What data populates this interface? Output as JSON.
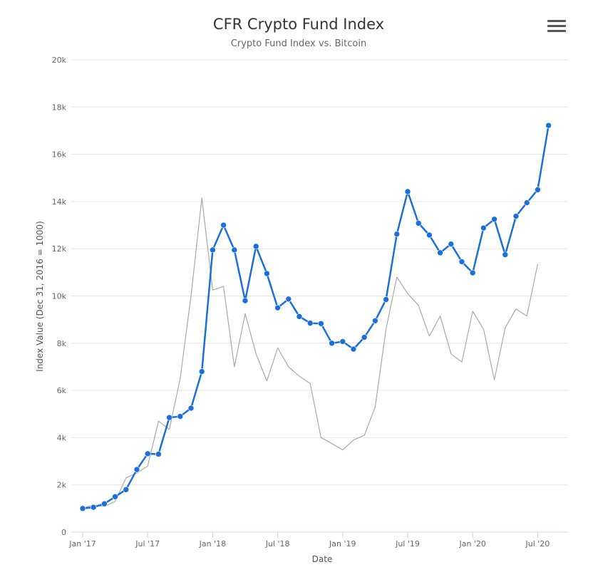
{
  "chart_data": {
    "type": "line",
    "title": "CFR Crypto Fund Index",
    "subtitle": "Crypto Fund Index vs. Bitcoin",
    "xlabel": "Date",
    "ylabel": "Index Value (Dec 31, 2016 = 1000)",
    "ylim": [
      0,
      20000
    ],
    "yticks": [
      0,
      2000,
      4000,
      6000,
      8000,
      10000,
      12000,
      14000,
      16000,
      18000,
      20000
    ],
    "ytick_labels": [
      "0",
      "2k",
      "4k",
      "6k",
      "8k",
      "10k",
      "12k",
      "14k",
      "16k",
      "18k",
      "20k"
    ],
    "x_domain": [
      "2017-01",
      "2020-08"
    ],
    "x_ticks": [
      {
        "date": "2017-01-01",
        "label": "Jan '17"
      },
      {
        "date": "2017-07-01",
        "label": "Jul '17"
      },
      {
        "date": "2018-01-01",
        "label": "Jan '18"
      },
      {
        "date": "2018-07-01",
        "label": "Jul '18"
      },
      {
        "date": "2019-01-01",
        "label": "Jan '19"
      },
      {
        "date": "2019-07-01",
        "label": "Jul '19"
      },
      {
        "date": "2020-01-01",
        "label": "Jan '20"
      },
      {
        "date": "2020-07-01",
        "label": "Jul '20"
      }
    ],
    "grid": true,
    "legend": "none",
    "series": [
      {
        "color": "#1a6fd8",
        "markers": true,
        "points": [
          [
            "2017-01-01",
            1000
          ],
          [
            "2017-02-01",
            1050
          ],
          [
            "2017-03-01",
            1200
          ],
          [
            "2017-04-01",
            1500
          ],
          [
            "2017-05-01",
            1800
          ],
          [
            "2017-06-01",
            2650
          ],
          [
            "2017-07-01",
            3320
          ],
          [
            "2017-08-01",
            3300
          ],
          [
            "2017-09-01",
            4850
          ],
          [
            "2017-10-01",
            4900
          ],
          [
            "2017-11-01",
            5250
          ],
          [
            "2017-12-01",
            6800
          ],
          [
            "2018-01-01",
            11950
          ],
          [
            "2018-02-01",
            13000
          ],
          [
            "2018-03-01",
            11950
          ],
          [
            "2018-04-01",
            9800
          ],
          [
            "2018-05-01",
            12100
          ],
          [
            "2018-06-01",
            10950
          ],
          [
            "2018-07-01",
            9500
          ],
          [
            "2018-08-01",
            9870
          ],
          [
            "2018-09-01",
            9130
          ],
          [
            "2018-10-01",
            8850
          ],
          [
            "2018-11-01",
            8830
          ],
          [
            "2018-12-01",
            8000
          ],
          [
            "2019-01-01",
            8070
          ],
          [
            "2019-02-01",
            7750
          ],
          [
            "2019-03-01",
            8250
          ],
          [
            "2019-04-01",
            8950
          ],
          [
            "2019-05-01",
            9850
          ],
          [
            "2019-06-01",
            12620
          ],
          [
            "2019-07-01",
            14420
          ],
          [
            "2019-08-01",
            13080
          ],
          [
            "2019-09-01",
            12580
          ],
          [
            "2019-10-01",
            11830
          ],
          [
            "2019-11-01",
            12200
          ],
          [
            "2019-12-01",
            11450
          ],
          [
            "2020-01-01",
            10980
          ],
          [
            "2020-02-01",
            12880
          ],
          [
            "2020-03-01",
            13250
          ],
          [
            "2020-04-01",
            11750
          ],
          [
            "2020-05-01",
            13380
          ],
          [
            "2020-06-01",
            13950
          ],
          [
            "2020-07-01",
            14500
          ],
          [
            "2020-08-01",
            17220
          ]
        ]
      },
      {
        "color": "#a9a9a9",
        "markers": false,
        "points": [
          [
            "2017-01-01",
            1020
          ],
          [
            "2017-02-01",
            1150
          ],
          [
            "2017-03-01",
            1080
          ],
          [
            "2017-04-01",
            1300
          ],
          [
            "2017-05-01",
            2300
          ],
          [
            "2017-06-01",
            2500
          ],
          [
            "2017-07-01",
            2800
          ],
          [
            "2017-08-01",
            4700
          ],
          [
            "2017-09-01",
            4350
          ],
          [
            "2017-10-01",
            6500
          ],
          [
            "2017-11-01",
            10000
          ],
          [
            "2017-12-01",
            14150
          ],
          [
            "2018-01-01",
            10250
          ],
          [
            "2018-02-01",
            10400
          ],
          [
            "2018-03-01",
            7000
          ],
          [
            "2018-04-01",
            9250
          ],
          [
            "2018-05-01",
            7550
          ],
          [
            "2018-06-01",
            6400
          ],
          [
            "2018-07-01",
            7800
          ],
          [
            "2018-08-01",
            7000
          ],
          [
            "2018-09-01",
            6600
          ],
          [
            "2018-10-01",
            6300
          ],
          [
            "2018-11-01",
            4000
          ],
          [
            "2018-12-01",
            3750
          ],
          [
            "2019-01-01",
            3480
          ],
          [
            "2019-02-01",
            3900
          ],
          [
            "2019-03-01",
            4100
          ],
          [
            "2019-04-01",
            5300
          ],
          [
            "2019-05-01",
            8600
          ],
          [
            "2019-06-01",
            10800
          ],
          [
            "2019-07-01",
            10100
          ],
          [
            "2019-08-01",
            9600
          ],
          [
            "2019-09-01",
            8300
          ],
          [
            "2019-10-01",
            9150
          ],
          [
            "2019-11-01",
            7550
          ],
          [
            "2019-12-01",
            7200
          ],
          [
            "2020-01-01",
            9350
          ],
          [
            "2020-02-01",
            8600
          ],
          [
            "2020-03-01",
            6450
          ],
          [
            "2020-04-01",
            8650
          ],
          [
            "2020-05-01",
            9450
          ],
          [
            "2020-06-01",
            9150
          ],
          [
            "2020-07-01",
            11350
          ]
        ]
      }
    ]
  },
  "menu": {
    "icon": "hamburger-menu-icon"
  }
}
